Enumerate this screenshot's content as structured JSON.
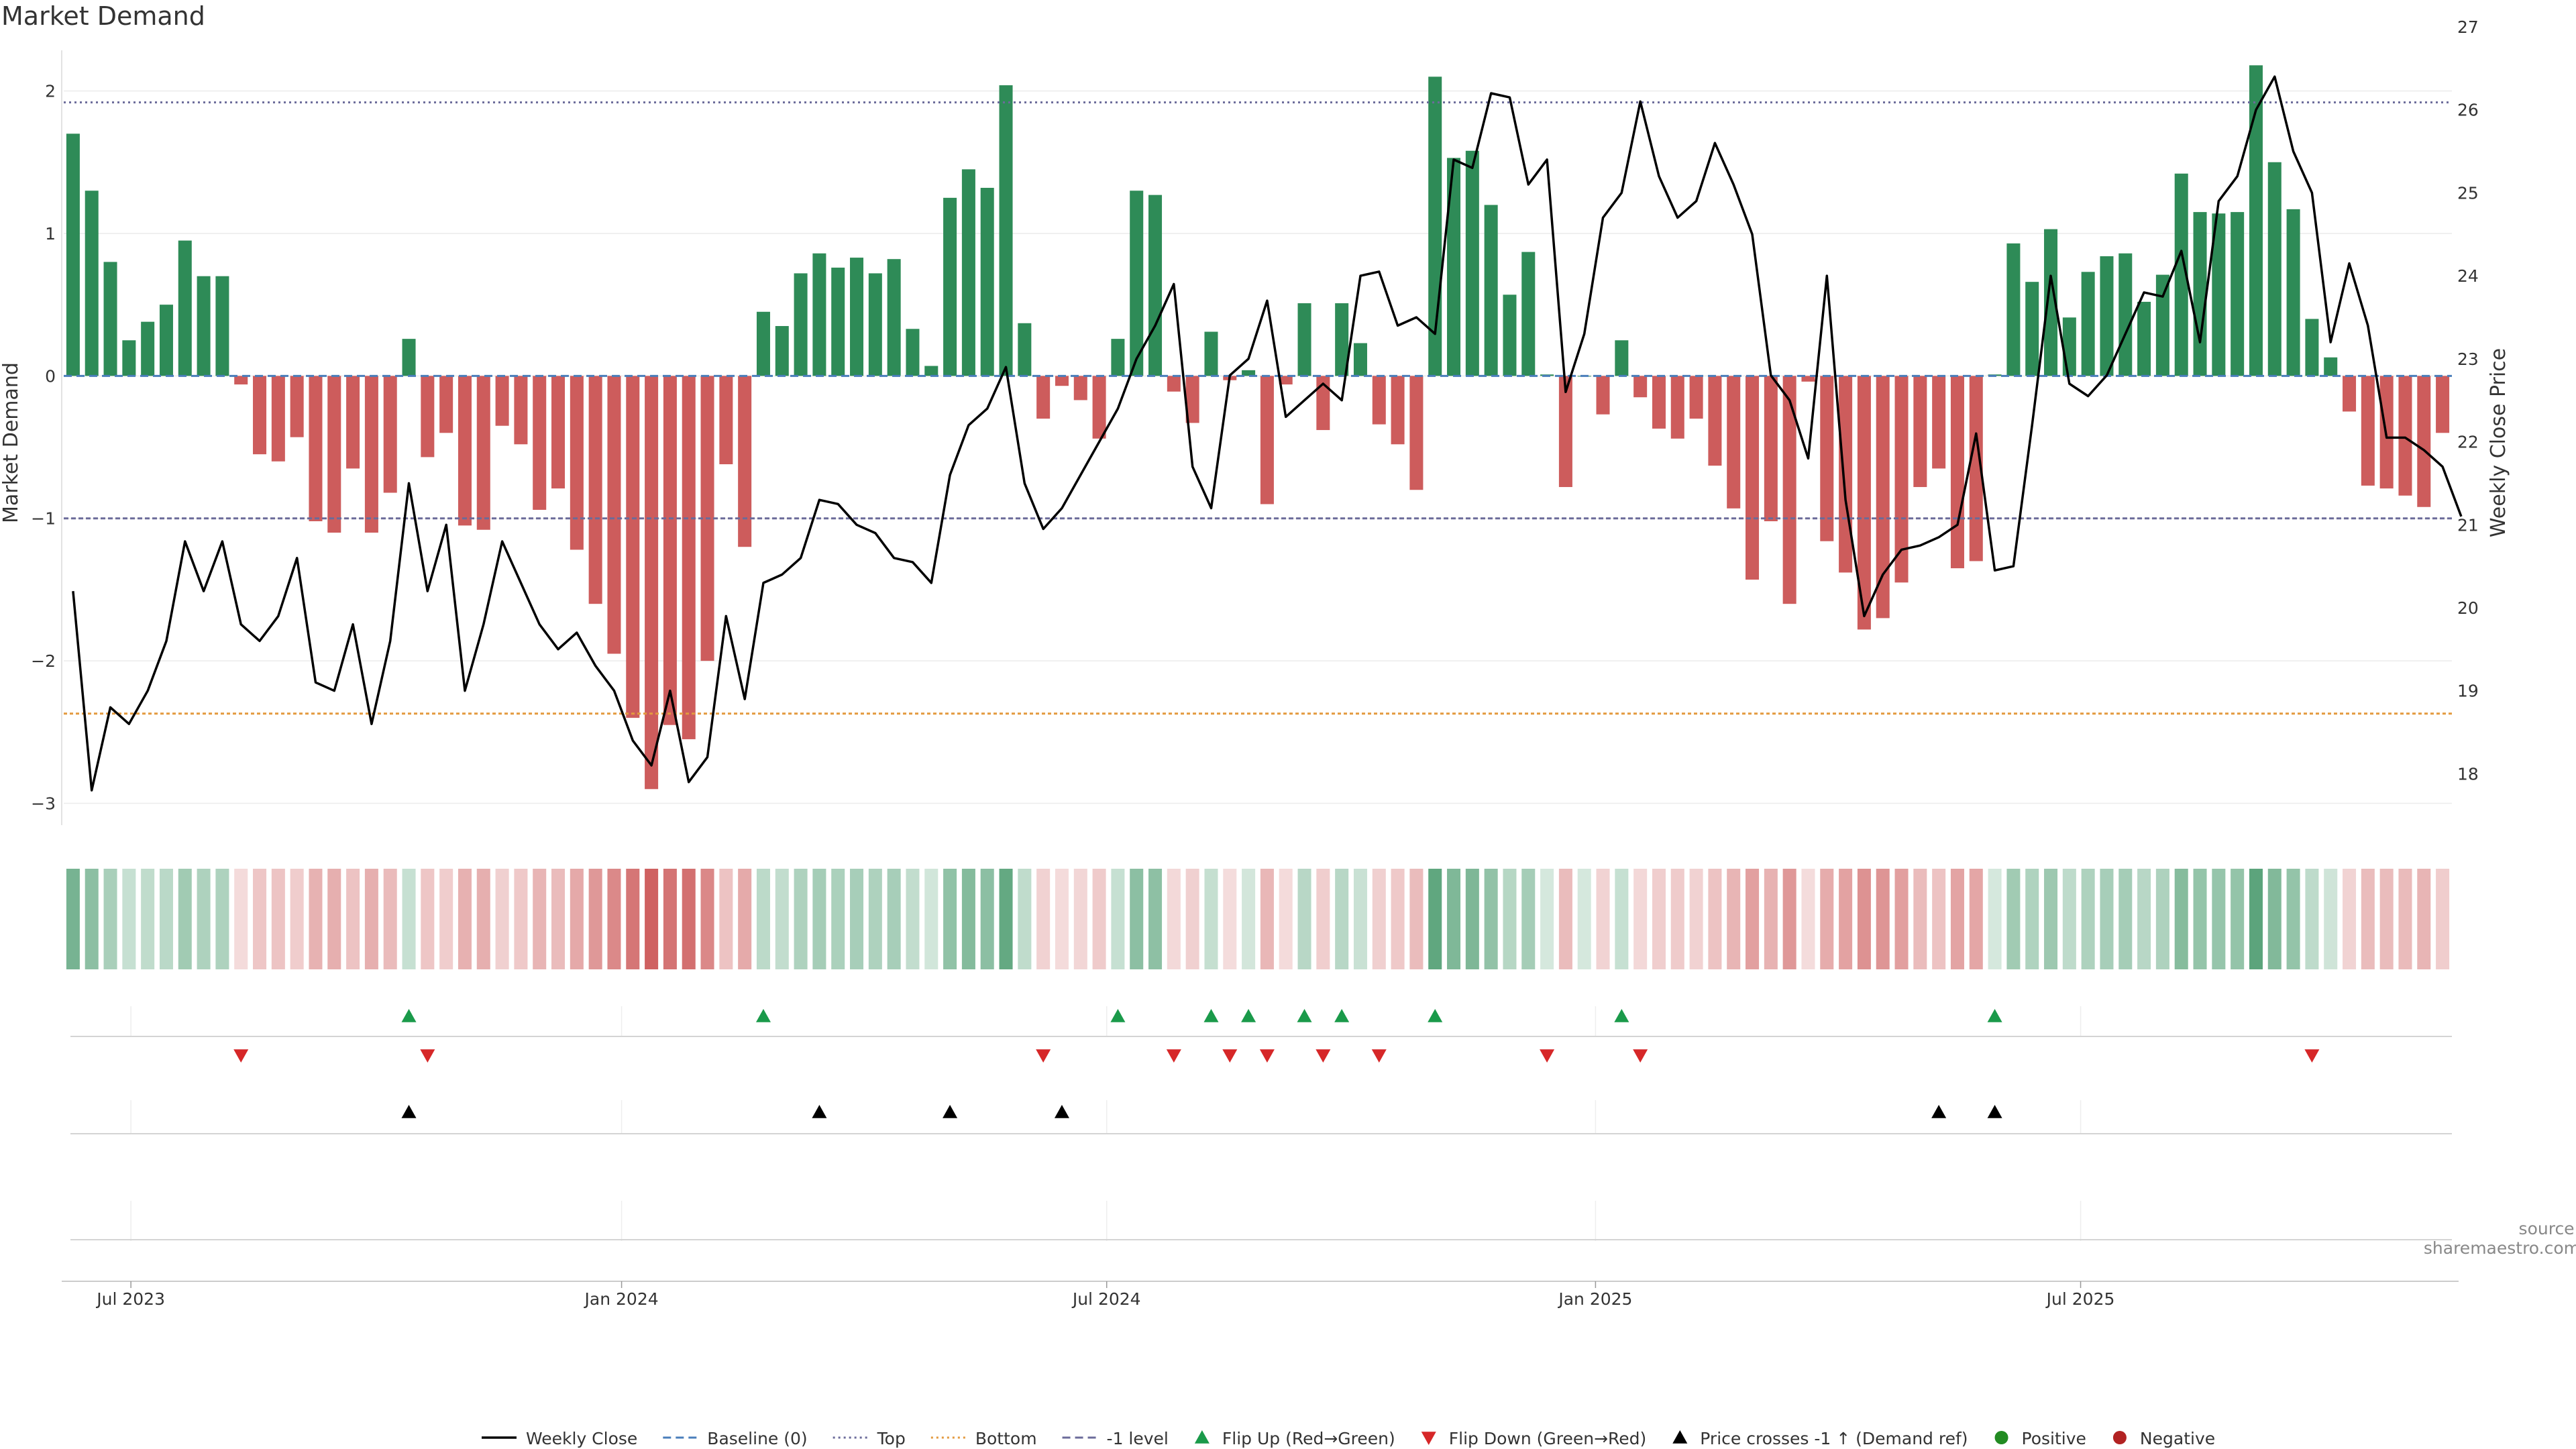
{
  "title": "Market Demand",
  "source": "source: sharemaestro.com",
  "colors": {
    "positive_bar": "#2e8b57",
    "negative_bar": "#cd5c5c",
    "price_line": "#000000",
    "top_line": "#6b6b9a",
    "bottom_line": "#e39a3f",
    "flip_up": "#1a9a4a",
    "flip_down": "#d62728",
    "cross_marker": "#000000",
    "positive_dot": "#228b22",
    "negative_dot": "#b22222"
  },
  "chart_data": {
    "type": "bar",
    "start_date": "2023-06-16",
    "frequency": "weekly",
    "demand": [
      1.7,
      1.3,
      0.8,
      0.25,
      0.38,
      0.5,
      0.95,
      0.7,
      0.7,
      -0.06,
      -0.55,
      -0.6,
      -0.43,
      -1.02,
      -1.1,
      -0.65,
      -1.1,
      -0.82,
      0.26,
      -0.57,
      -0.4,
      -1.05,
      -1.08,
      -0.35,
      -0.48,
      -0.94,
      -0.79,
      -1.22,
      -1.6,
      -1.95,
      -2.4,
      -2.9,
      -2.45,
      -2.55,
      -2.0,
      -0.62,
      -1.2,
      0.45,
      0.35,
      0.72,
      0.86,
      0.76,
      0.83,
      0.72,
      0.82,
      0.33,
      0.07,
      1.25,
      1.45,
      1.32,
      2.04,
      0.37,
      -0.3,
      -0.07,
      -0.17,
      -0.44,
      0.26,
      1.3,
      1.27,
      -0.11,
      -0.33,
      0.31,
      -0.03,
      0.04,
      -0.9,
      -0.06,
      0.51,
      -0.38,
      0.51,
      0.23,
      -0.34,
      -0.48,
      -0.8,
      2.1,
      1.53,
      1.58,
      1.2,
      0.57,
      0.87,
      0.01,
      -0.78,
      0.0,
      -0.27,
      0.25,
      -0.15,
      -0.37,
      -0.44,
      -0.3,
      -0.63,
      -0.93,
      -1.43,
      -1.02,
      -1.6,
      -0.04,
      -1.16,
      -1.38,
      -1.78,
      -1.7,
      -1.45,
      -0.78,
      -0.65,
      -1.35,
      -1.3,
      0.01,
      0.93,
      0.66,
      1.03,
      0.41,
      0.73,
      0.84,
      0.86,
      0.52,
      0.71,
      1.42,
      1.15,
      1.14,
      1.15,
      2.18,
      1.5,
      1.17,
      0.4,
      0.13,
      -0.25,
      -0.77,
      -0.79,
      -0.84,
      -0.92,
      -0.4
    ],
    "weekly_close": [
      20.2,
      17.8,
      18.8,
      18.6,
      19.0,
      19.6,
      20.8,
      20.2,
      20.8,
      19.8,
      19.6,
      19.9,
      20.6,
      19.1,
      19.0,
      19.8,
      18.6,
      19.6,
      21.5,
      20.2,
      21.0,
      19.0,
      19.8,
      20.8,
      20.3,
      19.8,
      19.5,
      19.7,
      19.3,
      19.0,
      18.4,
      18.1,
      19.0,
      17.9,
      18.2,
      19.9,
      18.9,
      20.3,
      20.4,
      20.6,
      21.3,
      21.25,
      21.0,
      20.9,
      20.6,
      20.55,
      20.3,
      21.6,
      22.2,
      22.4,
      22.9,
      21.5,
      20.95,
      21.2,
      21.6,
      22.0,
      22.4,
      23.0,
      23.4,
      23.9,
      21.7,
      21.2,
      22.8,
      23.0,
      23.7,
      22.3,
      22.5,
      22.7,
      22.5,
      24.0,
      24.05,
      23.4,
      23.5,
      23.3,
      25.4,
      25.3,
      26.2,
      26.15,
      25.1,
      25.4,
      22.6,
      23.3,
      24.7,
      25.0,
      26.1,
      25.2,
      24.7,
      24.9,
      25.6,
      25.1,
      24.5,
      22.8,
      22.5,
      21.8,
      24.0,
      21.3,
      19.9,
      20.4,
      20.7,
      20.75,
      20.85,
      21.0,
      22.1,
      20.45,
      20.5,
      22.2,
      24.0,
      22.7,
      22.55,
      22.8,
      23.3,
      23.8,
      23.75,
      24.3,
      23.2,
      24.9,
      25.2,
      26.0,
      26.4,
      25.5,
      25.0,
      23.2,
      24.15,
      23.4,
      22.05,
      22.05,
      21.9,
      21.7,
      21.1
    ],
    "y_left": {
      "label": "Market Demand",
      "range": [
        -3.2,
        2.45
      ],
      "ticks": [
        -3,
        -2,
        -1,
        0,
        1,
        2
      ]
    },
    "y_right": {
      "label": "Weekly Close Price",
      "range": [
        17.3,
        27.0
      ],
      "ticks": [
        18,
        19,
        20,
        21,
        22,
        23,
        24,
        25,
        26,
        27
      ]
    },
    "x_ticks": [
      {
        "label": "Jul 2023",
        "index": 3.1
      },
      {
        "label": "Jan 2024",
        "index": 29.4
      },
      {
        "label": "Jul 2024",
        "index": 55.4
      },
      {
        "label": "Jan 2025",
        "index": 81.6
      },
      {
        "label": "Jul 2025",
        "index": 107.6
      }
    ],
    "reference_lines": {
      "top": 1.92,
      "bottom": -2.37,
      "minus_one": -1,
      "baseline": 0
    },
    "flip_up_indices": [
      18,
      37,
      56,
      61,
      63,
      66,
      68,
      73,
      83,
      103
    ],
    "flip_down_indices": [
      9,
      19,
      52,
      59,
      62,
      64,
      67,
      70,
      79,
      84,
      120
    ],
    "price_cross_indices": [
      18,
      40,
      47,
      53,
      100,
      103
    ],
    "legend": [
      {
        "key": "weekly_close",
        "label": "Weekly Close",
        "symbol": "line",
        "color": "#000000"
      },
      {
        "key": "baseline",
        "label": "Baseline (0)",
        "symbol": "dashed",
        "color": "#4a7ebb"
      },
      {
        "key": "top",
        "label": "Top",
        "symbol": "dotted",
        "color": "#6b6b9a"
      },
      {
        "key": "bottom",
        "label": "Bottom",
        "symbol": "dotted",
        "color": "#e39a3f"
      },
      {
        "key": "minus_one",
        "label": "-1 level",
        "symbol": "dashed",
        "color": "#6b6b9a"
      },
      {
        "key": "flip_up",
        "label": "Flip Up (Red→Green)",
        "symbol": "triangle-up",
        "color": "#1a9a4a"
      },
      {
        "key": "flip_down",
        "label": "Flip Down (Green→Red)",
        "symbol": "triangle-down",
        "color": "#d62728"
      },
      {
        "key": "price_cross",
        "label": "Price crosses -1 ↑ (Demand ref)",
        "symbol": "triangle-up",
        "color": "#000000"
      },
      {
        "key": "positive",
        "label": "Positive",
        "symbol": "dot",
        "color": "#228b22"
      },
      {
        "key": "negative",
        "label": "Negative",
        "symbol": "dot",
        "color": "#b22222"
      }
    ]
  }
}
